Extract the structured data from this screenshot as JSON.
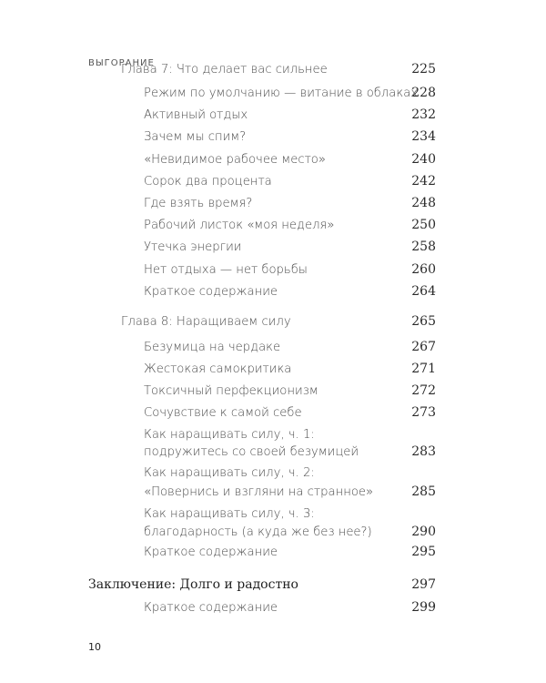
{
  "running_head": "ВЫГОРАНИЕ",
  "folio": "10",
  "entries": [
    {
      "level": 0,
      "lines": [
        "Глава 7: Что делает вас сильнее"
      ],
      "page": "225"
    },
    {
      "level": 1,
      "lines": [
        "Режим по умолчанию — витание в облаках"
      ],
      "page": "228"
    },
    {
      "level": 1,
      "lines": [
        "Активный отдых"
      ],
      "page": "232"
    },
    {
      "level": 1,
      "lines": [
        "Зачем мы спим?"
      ],
      "page": "234"
    },
    {
      "level": 1,
      "lines": [
        "«Невидимое рабочее место»"
      ],
      "page": "240"
    },
    {
      "level": 1,
      "lines": [
        "Сорок два процента"
      ],
      "page": "242"
    },
    {
      "level": 1,
      "lines": [
        "Где взять время?"
      ],
      "page": "248"
    },
    {
      "level": 1,
      "lines": [
        "Рабочий листок «моя неделя»"
      ],
      "page": "250"
    },
    {
      "level": 1,
      "lines": [
        "Утечка энергии"
      ],
      "page": "258"
    },
    {
      "level": 1,
      "lines": [
        "Нет отдыха — нет борьбы"
      ],
      "page": "260"
    },
    {
      "level": 1,
      "lines": [
        "Краткое содержание"
      ],
      "page": "264"
    },
    {
      "level": 0,
      "lines": [
        "Глава 8: Наращиваем силу"
      ],
      "page": "265"
    },
    {
      "level": 1,
      "lines": [
        "Безумица на чердаке"
      ],
      "page": "267"
    },
    {
      "level": 1,
      "lines": [
        "Жестокая самокритика"
      ],
      "page": "271"
    },
    {
      "level": 1,
      "lines": [
        "Токсичный перфекционизм"
      ],
      "page": "272"
    },
    {
      "level": 1,
      "lines": [
        "Сочувствие к самой себе"
      ],
      "page": "273"
    },
    {
      "level": 1,
      "lines": [
        "Как наращивать силу, ч. 1:",
        "подружитесь со своей безумицей"
      ],
      "page": "283"
    },
    {
      "level": 1,
      "lines": [
        "Как наращивать силу, ч. 2:",
        "«Повернись и взгляни на странное»"
      ],
      "page": "285"
    },
    {
      "level": 1,
      "lines": [
        "Как наращивать силу, ч. 3:",
        "благодарность (а куда же без нее?)"
      ],
      "page": "290"
    },
    {
      "level": 1,
      "lines": [
        "Краткое содержание"
      ],
      "page": "295"
    },
    {
      "level": "part",
      "lines": [
        "Заключение: Долго и радостно"
      ],
      "page": "297"
    },
    {
      "level": 1,
      "lines": [
        "Краткое содержание"
      ],
      "page": "299"
    }
  ]
}
